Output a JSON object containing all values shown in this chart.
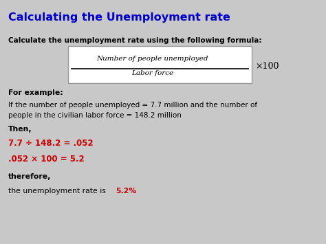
{
  "title": "Calculating the Unemployment rate",
  "title_color": "#0000CC",
  "bg_color": "#C8C8C8",
  "formula_box_color": "#FFFFFF",
  "formula_numerator": "Number of people unemployed",
  "formula_denominator": "Labor force",
  "formula_multiplier": "×100",
  "line1_bold": "Calculate the unemployment rate using the following formula:",
  "for_example": "For example:",
  "example_text1": "If the number of people unemployed = 7.7 million and the number of",
  "example_text2": "people in the civilian labor force = 148.2 million",
  "then": "Then,",
  "calc1": "7.7 ÷ 148.2 = .052",
  "calc2": ".052 × 100 = 5.2",
  "therefore": "therefore,",
  "conclusion_prefix": "the unemployment rate is ",
  "conclusion_value": "5.2%",
  "red_color": "#CC0000",
  "black_color": "#000000"
}
